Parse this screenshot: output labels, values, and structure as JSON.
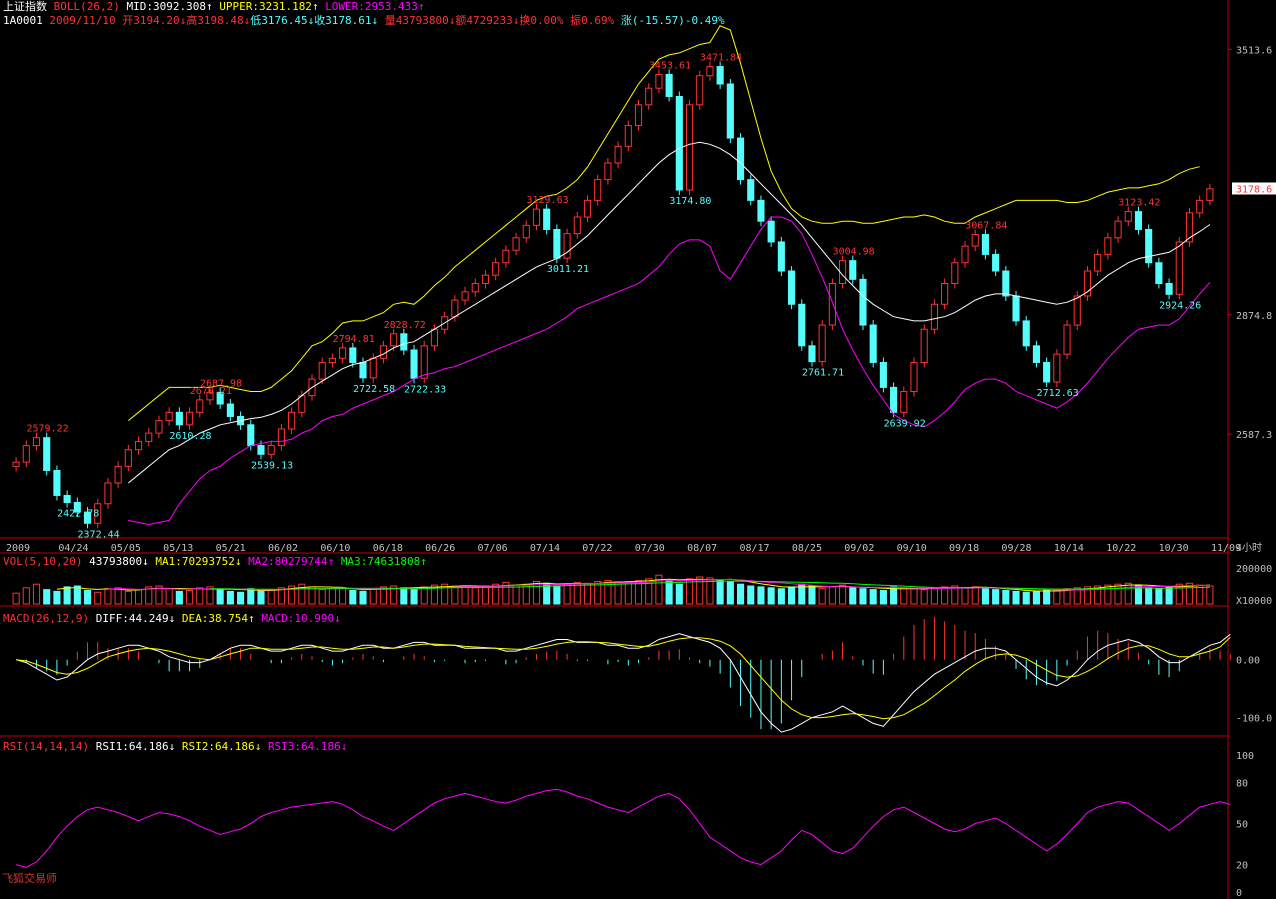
{
  "header": {
    "index_name": "上证指数",
    "boll": {
      "label": "BOLL(26,2)",
      "mid": "MID:3092.308",
      "mid_dir": "↑",
      "upper": "UPPER:3231.182",
      "upper_dir": "↑",
      "lower": "LOWER:2953.433",
      "lower_dir": "↑"
    },
    "quote": {
      "code": "1A0001",
      "date": "2009/11/10",
      "open": "开3194.20",
      "open_dir": "↓",
      "high": "高3198.48",
      "high_dir": "↓",
      "low": "低3176.45",
      "low_dir": "↓",
      "close": "收3178.61",
      "close_dir": "↓",
      "volume": "量43793800",
      "volume_dir": "↓",
      "amount": "额4729233",
      "amount_dir": "↓",
      "turnover": "换0.00%",
      "amplitude": "振0.69%",
      "change": "涨(-15.57)-0.49%"
    },
    "vol": {
      "label": "VOL(5,10,20)",
      "value": "43793800",
      "value_dir": "↓",
      "ma1": "MA1:70293752",
      "ma1_dir": "↓",
      "ma2": "MA2:80279744",
      "ma2_dir": "↑",
      "ma3": "MA3:74631808",
      "ma3_dir": "↑"
    },
    "macd": {
      "label": "MACD(26,12,9)",
      "diff": "DIFF:44.249",
      "diff_dir": "↓",
      "dea": "DEA:38.754",
      "dea_dir": "↑",
      "macd": "MACD:10.990",
      "macd_dir": "↓"
    },
    "rsi": {
      "label": "RSI(14,14,14)",
      "rsi1": "RSI1:64.186",
      "rsi1_dir": "↓",
      "rsi2": "RSI2:64.186",
      "rsi2_dir": "↓",
      "rsi3": "RSI3:64.186",
      "rsi3_dir": "↓"
    }
  },
  "watermark": "飞狐交易师",
  "colors": {
    "up": "#ff3232",
    "down": "#54fcfc",
    "mid": "#ffffff",
    "upper": "#ffff00",
    "lower": "#ff00ff",
    "axis": "#c00000",
    "label_gray": "#c0c0c0"
  },
  "chart_data": [
    {
      "type": "candlestick",
      "title": "上证指数 BOLL(26,2)",
      "y_ticks": [
        3513.6,
        2874.8,
        2587.3
      ],
      "ylim": [
        2340,
        3560
      ],
      "last_price": "3178.6",
      "x_tick_labels": [
        "2009",
        "04/24",
        "05/05",
        "05/13",
        "05/21",
        "06/02",
        "06/10",
        "06/18",
        "06/26",
        "07/06",
        "07/14",
        "07/22",
        "07/30",
        "08/07",
        "08/17",
        "08/25",
        "09/02",
        "09/10",
        "09/18",
        "09/28",
        "10/14",
        "10/22",
        "10/30",
        "11/09"
      ],
      "x_period_label": "4小时",
      "close_path": [
        2520,
        2560,
        2579,
        2500,
        2440,
        2423,
        2400,
        2373,
        2420,
        2470,
        2510,
        2550,
        2570,
        2590,
        2620,
        2640,
        2610,
        2640,
        2670,
        2688,
        2660,
        2630,
        2610,
        2560,
        2539,
        2560,
        2600,
        2640,
        2680,
        2720,
        2760,
        2770,
        2795,
        2760,
        2723,
        2770,
        2800,
        2829,
        2790,
        2722,
        2800,
        2840,
        2870,
        2910,
        2930,
        2950,
        2970,
        3000,
        3030,
        3060,
        3090,
        3129,
        3080,
        3011,
        3070,
        3110,
        3150,
        3200,
        3240,
        3280,
        3330,
        3380,
        3420,
        3453,
        3400,
        3175,
        3380,
        3450,
        3472,
        3430,
        3300,
        3200,
        3150,
        3100,
        3050,
        2980,
        2900,
        2800,
        2762,
        2850,
        2950,
        3005,
        2960,
        2850,
        2760,
        2700,
        2640,
        2690,
        2760,
        2840,
        2900,
        2950,
        3000,
        3040,
        3068,
        3020,
        2980,
        2920,
        2860,
        2800,
        2760,
        2713,
        2780,
        2850,
        2920,
        2980,
        3020,
        3060,
        3100,
        3123,
        3080,
        3000,
        2950,
        2924,
        3050,
        3120,
        3150,
        3178
      ],
      "mid_path": [
        null,
        null,
        null,
        null,
        null,
        null,
        null,
        null,
        null,
        null,
        null,
        2470,
        2490,
        2510,
        2530,
        2550,
        2560,
        2575,
        2590,
        2600,
        2610,
        2615,
        2620,
        2625,
        2628,
        2635,
        2645,
        2660,
        2680,
        2700,
        2715,
        2730,
        2745,
        2755,
        2760,
        2770,
        2780,
        2795,
        2805,
        2810,
        2825,
        2840,
        2855,
        2870,
        2885,
        2900,
        2915,
        2930,
        2945,
        2960,
        2975,
        2990,
        3000,
        3010,
        3025,
        3045,
        3065,
        3090,
        3115,
        3140,
        3165,
        3190,
        3215,
        3240,
        3260,
        3275,
        3285,
        3290,
        3285,
        3275,
        3260,
        3240,
        3215,
        3190,
        3165,
        3140,
        3115,
        3090,
        3060,
        3030,
        3000,
        2970,
        2945,
        2920,
        2900,
        2885,
        2870,
        2865,
        2860,
        2860,
        2865,
        2870,
        2880,
        2895,
        2910,
        2920,
        2925,
        2925,
        2920,
        2915,
        2910,
        2905,
        2900,
        2905,
        2915,
        2930,
        2950,
        2970,
        2985,
        3000,
        3010,
        3015,
        3020,
        3025,
        3040,
        3060,
        3075,
        3092
      ],
      "upper_path": [
        null,
        null,
        null,
        null,
        null,
        null,
        null,
        null,
        null,
        null,
        null,
        2620,
        2640,
        2660,
        2680,
        2700,
        2700,
        2700,
        2700,
        2700,
        2705,
        2700,
        2695,
        2690,
        2690,
        2700,
        2720,
        2740,
        2770,
        2800,
        2810,
        2830,
        2855,
        2860,
        2860,
        2870,
        2880,
        2900,
        2905,
        2900,
        2920,
        2945,
        2965,
        2990,
        3010,
        3030,
        3050,
        3070,
        3090,
        3110,
        3130,
        3150,
        3160,
        3165,
        3180,
        3200,
        3230,
        3270,
        3310,
        3350,
        3390,
        3430,
        3460,
        3490,
        3500,
        3505,
        3515,
        3525,
        3530,
        3570,
        3560,
        3480,
        3390,
        3300,
        3220,
        3170,
        3130,
        3110,
        3100,
        3095,
        3095,
        3100,
        3100,
        3095,
        3095,
        3100,
        3105,
        3110,
        3110,
        3115,
        3110,
        3100,
        3095,
        3095,
        3110,
        3120,
        3130,
        3140,
        3150,
        3150,
        3150,
        3150,
        3150,
        3145,
        3145,
        3150,
        3160,
        3170,
        3175,
        3180,
        3180,
        3185,
        3190,
        3200,
        3215,
        3225,
        3231
      ],
      "lower_path": [
        null,
        null,
        null,
        null,
        null,
        null,
        null,
        null,
        null,
        null,
        null,
        2380,
        2375,
        2370,
        2375,
        2380,
        2420,
        2450,
        2480,
        2500,
        2510,
        2530,
        2545,
        2560,
        2565,
        2570,
        2570,
        2575,
        2590,
        2600,
        2620,
        2630,
        2635,
        2650,
        2660,
        2670,
        2680,
        2690,
        2705,
        2720,
        2730,
        2735,
        2745,
        2750,
        2760,
        2770,
        2780,
        2790,
        2800,
        2810,
        2820,
        2830,
        2840,
        2855,
        2870,
        2890,
        2900,
        2910,
        2920,
        2930,
        2940,
        2950,
        2970,
        2990,
        3020,
        3045,
        3055,
        3055,
        3040,
        2980,
        2960,
        3000,
        3040,
        3080,
        3110,
        3110,
        3100,
        3070,
        3020,
        2965,
        2905,
        2840,
        2790,
        2745,
        2705,
        2670,
        2635,
        2620,
        2610,
        2605,
        2620,
        2640,
        2665,
        2695,
        2710,
        2720,
        2720,
        2710,
        2690,
        2680,
        2670,
        2660,
        2650,
        2665,
        2685,
        2710,
        2740,
        2770,
        2795,
        2820,
        2840,
        2845,
        2850,
        2850,
        2865,
        2895,
        2925,
        2953
      ],
      "price_labels": [
        {
          "x": 2,
          "y": 2579,
          "text": "2579.22",
          "side": "high"
        },
        {
          "x": 5,
          "y": 2423,
          "text": "2422.78",
          "side": "low"
        },
        {
          "x": 7,
          "y": 2373,
          "text": "2372.44",
          "side": "low"
        },
        {
          "x": 18,
          "y": 2670,
          "text": "2670.21",
          "side": "high"
        },
        {
          "x": 19,
          "y": 2688,
          "text": "2687.98",
          "side": "high"
        },
        {
          "x": 16,
          "y": 2610,
          "text": "2610.28",
          "side": "low"
        },
        {
          "x": 24,
          "y": 2539,
          "text": "2539.13",
          "side": "low"
        },
        {
          "x": 32,
          "y": 2795,
          "text": "2794.81",
          "side": "high"
        },
        {
          "x": 37,
          "y": 2829,
          "text": "2828.72",
          "side": "high"
        },
        {
          "x": 34,
          "y": 2723,
          "text": "2722.58",
          "side": "low"
        },
        {
          "x": 39,
          "y": 2722,
          "text": "2722.33",
          "side": "low"
        },
        {
          "x": 51,
          "y": 3129,
          "text": "3129.63",
          "side": "high"
        },
        {
          "x": 53,
          "y": 3011,
          "text": "3011.21",
          "side": "low"
        },
        {
          "x": 63,
          "y": 3453,
          "text": "3453.61",
          "side": "high"
        },
        {
          "x": 68,
          "y": 3472,
          "text": "3471.84",
          "side": "high"
        },
        {
          "x": 65,
          "y": 3175,
          "text": "3174.80",
          "side": "low"
        },
        {
          "x": 78,
          "y": 2762,
          "text": "2761.71",
          "side": "low"
        },
        {
          "x": 81,
          "y": 3005,
          "text": "3004.98",
          "side": "high"
        },
        {
          "x": 86,
          "y": 2640,
          "text": "2639.92",
          "side": "low"
        },
        {
          "x": 94,
          "y": 3068,
          "text": "3067.84",
          "side": "high"
        },
        {
          "x": 101,
          "y": 2713,
          "text": "2712.63",
          "side": "low"
        },
        {
          "x": 109,
          "y": 3123,
          "text": "3123.42",
          "side": "high"
        },
        {
          "x": 113,
          "y": 2924,
          "text": "2924.26",
          "side": "low"
        }
      ]
    },
    {
      "type": "bar",
      "title": "VOL(5,10,20)",
      "y_ticks": [
        200000
      ],
      "unit_label": "X10000",
      "ylim": [
        0,
        200000
      ],
      "values": [
        60000,
        90000,
        110000,
        80000,
        70000,
        95000,
        100000,
        75000,
        65000,
        85000,
        90000,
        70000,
        80000,
        95000,
        100000,
        85000,
        70000,
        75000,
        90000,
        95000,
        80000,
        70000,
        65000,
        85000,
        75000,
        80000,
        90000,
        100000,
        110000,
        95000,
        80000,
        85000,
        90000,
        75000,
        70000,
        85000,
        95000,
        100000,
        90000,
        80000,
        95000,
        105000,
        110000,
        100000,
        95000,
        90000,
        100000,
        110000,
        120000,
        105000,
        110000,
        125000,
        115000,
        100000,
        110000,
        120000,
        115000,
        125000,
        130000,
        120000,
        125000,
        130000,
        140000,
        160000,
        130000,
        110000,
        140000,
        150000,
        145000,
        130000,
        125000,
        110000,
        100000,
        95000,
        90000,
        85000,
        95000,
        110000,
        100000,
        85000,
        95000,
        105000,
        90000,
        85000,
        80000,
        75000,
        95000,
        90000,
        85000,
        80000,
        85000,
        95000,
        100000,
        90000,
        95000,
        85000,
        80000,
        75000,
        70000,
        65000,
        70000,
        80000,
        75000,
        85000,
        90000,
        95000,
        100000,
        105000,
        110000,
        115000,
        100000,
        90000,
        85000,
        95000,
        110000,
        115000,
        105000,
        100000
      ]
    },
    {
      "type": "line",
      "title": "MACD(26,12,9)",
      "y_ticks": [
        0.0,
        -100.0
      ],
      "ylim": [
        -130,
        60
      ],
      "diff": [
        0,
        -5,
        -15,
        -25,
        -35,
        -30,
        -15,
        0,
        10,
        15,
        20,
        25,
        25,
        20,
        15,
        5,
        0,
        -5,
        -5,
        0,
        10,
        20,
        25,
        25,
        20,
        15,
        15,
        20,
        25,
        25,
        20,
        15,
        15,
        20,
        25,
        25,
        20,
        20,
        25,
        30,
        30,
        25,
        25,
        25,
        20,
        20,
        20,
        20,
        15,
        15,
        20,
        25,
        30,
        35,
        35,
        30,
        30,
        30,
        25,
        25,
        20,
        20,
        25,
        35,
        40,
        45,
        40,
        35,
        30,
        20,
        0,
        -30,
        -60,
        -90,
        -110,
        -125,
        -120,
        -110,
        -100,
        -95,
        -90,
        -80,
        -90,
        -100,
        -110,
        -115,
        -95,
        -75,
        -55,
        -40,
        -25,
        -15,
        -5,
        5,
        15,
        20,
        20,
        15,
        0,
        -15,
        -30,
        -40,
        -45,
        -35,
        -20,
        0,
        15,
        25,
        30,
        35,
        30,
        20,
        5,
        -5,
        -5,
        5,
        15,
        25,
        30,
        44
      ],
      "dea": [
        0,
        -2,
        -8,
        -15,
        -22,
        -25,
        -22,
        -15,
        -5,
        5,
        10,
        15,
        18,
        20,
        18,
        15,
        10,
        5,
        2,
        0,
        5,
        10,
        15,
        20,
        20,
        18,
        18,
        18,
        20,
        22,
        22,
        20,
        18,
        18,
        20,
        22,
        22,
        20,
        22,
        25,
        27,
        27,
        26,
        25,
        23,
        22,
        21,
        20,
        19,
        18,
        18,
        20,
        23,
        27,
        30,
        31,
        31,
        30,
        29,
        27,
        25,
        23,
        23,
        27,
        32,
        36,
        38,
        38,
        36,
        32,
        24,
        10,
        -10,
        -30,
        -50,
        -70,
        -85,
        -95,
        -100,
        -100,
        -98,
        -95,
        -93,
        -95,
        -98,
        -102,
        -100,
        -95,
        -85,
        -75,
        -62,
        -48,
        -35,
        -20,
        -8,
        2,
        8,
        10,
        8,
        2,
        -8,
        -18,
        -27,
        -30,
        -28,
        -20,
        -10,
        2,
        12,
        20,
        24,
        24,
        18,
        10,
        5,
        5,
        10,
        15,
        22,
        38.754
      ]
    },
    {
      "type": "line",
      "title": "RSI(14,14,14)",
      "y_ticks": [
        100,
        80,
        50,
        20,
        0
      ],
      "ylim": [
        0,
        100
      ],
      "rsi": [
        20,
        18,
        22,
        30,
        40,
        48,
        55,
        60,
        62,
        60,
        58,
        55,
        52,
        55,
        58,
        57,
        55,
        52,
        48,
        45,
        42,
        44,
        46,
        50,
        55,
        58,
        60,
        62,
        63,
        64,
        65,
        66,
        64,
        60,
        55,
        52,
        48,
        45,
        50,
        55,
        60,
        65,
        68,
        70,
        72,
        70,
        68,
        66,
        65,
        67,
        70,
        72,
        74,
        75,
        73,
        70,
        68,
        65,
        62,
        60,
        58,
        62,
        66,
        70,
        72,
        68,
        60,
        50,
        40,
        35,
        30,
        25,
        22,
        20,
        25,
        30,
        38,
        45,
        42,
        36,
        30,
        28,
        32,
        40,
        48,
        55,
        60,
        62,
        58,
        54,
        50,
        46,
        44,
        46,
        50,
        52,
        54,
        50,
        45,
        40,
        35,
        30,
        35,
        42,
        50,
        58,
        62,
        64,
        66,
        65,
        60,
        55,
        50,
        45,
        50,
        56,
        62,
        64,
        66,
        64
      ]
    }
  ]
}
